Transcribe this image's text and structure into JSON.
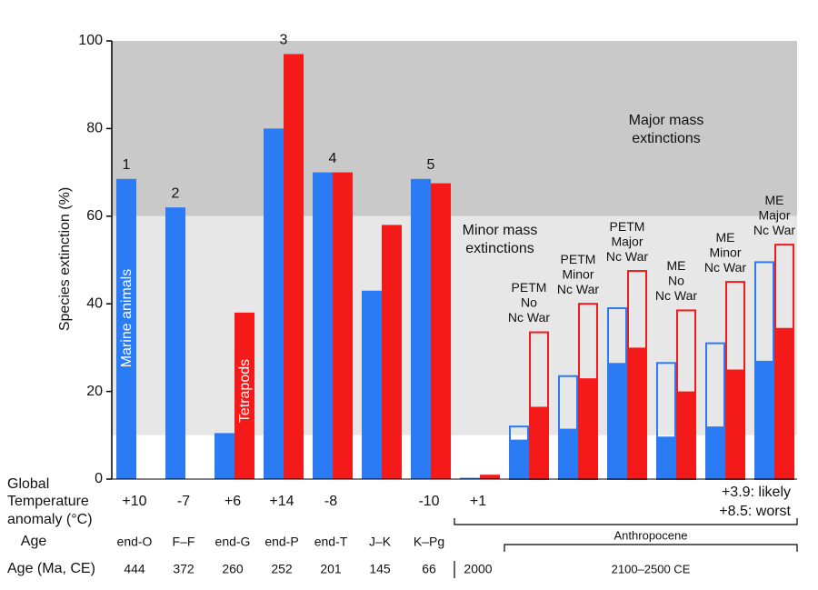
{
  "chart_data": {
    "type": "bar",
    "y_label": "Species extinction (%)",
    "ylim": [
      0,
      100
    ],
    "yticks": [
      0,
      20,
      40,
      60,
      80,
      100
    ],
    "bands": [
      {
        "from": 60,
        "to": 100,
        "color": "#c9c9c9",
        "label": [
          "Major mass",
          "extinctions"
        ]
      },
      {
        "from": 10,
        "to": 60,
        "color": "#e7e7e7",
        "label": [
          "Minor mass",
          "extinctions"
        ]
      }
    ],
    "categories": [
      "end-O",
      "F–F",
      "end-G",
      "end-P",
      "end-T",
      "J–K",
      "K–Pg",
      null,
      null,
      null,
      null,
      null,
      null,
      null
    ],
    "bar_labels": [
      [
        "1"
      ],
      [
        "2"
      ],
      null,
      [
        "3"
      ],
      [
        "4"
      ],
      null,
      [
        "5"
      ],
      null,
      [
        "PETM",
        "No",
        "Nc War"
      ],
      [
        "PETM",
        "Minor",
        "Nc War"
      ],
      [
        "PETM",
        "Major",
        "Nc War"
      ],
      [
        "ME",
        "No",
        "Nc War"
      ],
      [
        "ME",
        "Minor",
        "Nc War"
      ],
      [
        "ME",
        "Major",
        "Nc War"
      ]
    ],
    "series": [
      {
        "name": "Marine animals",
        "color": "#2b7bf5",
        "values": [
          68.5,
          62,
          10.5,
          80,
          70,
          43,
          68.5,
          0.3,
          9,
          11.5,
          26.5,
          9.7,
          12,
          27
        ],
        "upper_values": [
          null,
          null,
          null,
          null,
          null,
          null,
          null,
          null,
          12,
          23.5,
          39,
          26.5,
          31,
          49.5
        ]
      },
      {
        "name": "Tetrapods",
        "color": "#f51a1a",
        "values": [
          null,
          null,
          38,
          97,
          70,
          58,
          67.5,
          1,
          16.5,
          23,
          30,
          20,
          25,
          34.5
        ],
        "upper_values": [
          null,
          null,
          null,
          null,
          null,
          null,
          null,
          null,
          33.5,
          40,
          47.5,
          38.5,
          45,
          53.5
        ]
      }
    ],
    "temperature": {
      "label": [
        "Global",
        "Temperature",
        "anomaly (°C)"
      ],
      "values": [
        "+10",
        "-7",
        "+6",
        "+14",
        "-8",
        null,
        "-10",
        "+1",
        null,
        null,
        null,
        null,
        null,
        null
      ],
      "range_labels": [
        "+3.9: likely",
        "+8.5: worst"
      ]
    },
    "age": {
      "label": "Age",
      "range_label": "Anthropocene"
    },
    "age_numeric": {
      "label": "Age (Ma, CE)",
      "values": [
        444,
        372,
        260,
        252,
        201,
        145,
        66,
        2000,
        null,
        null,
        null,
        null,
        null,
        null
      ],
      "range_label": "2100–2500 CE"
    }
  }
}
